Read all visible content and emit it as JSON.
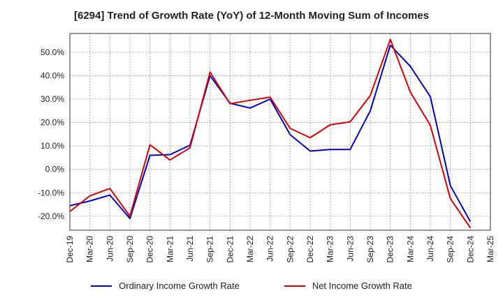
{
  "chart_data": {
    "type": "line",
    "title": "[6294]  Trend of Growth Rate (YoY) of 12-Month Moving Sum of Incomes",
    "xlabel": "",
    "ylabel": "",
    "ylim": [
      -26,
      58
    ],
    "y_ticks": [
      -20,
      -10,
      0,
      10,
      20,
      30,
      40,
      50
    ],
    "y_tick_labels": [
      "-20.0%",
      "-10.0%",
      "0.0%",
      "10.0%",
      "20.0%",
      "30.0%",
      "40.0%",
      "50.0%"
    ],
    "x_tick_labels": [
      "Dec-19",
      "Mar-20",
      "Jun-20",
      "Sep-20",
      "Dec-20",
      "Mar-21",
      "Jun-21",
      "Sep-21",
      "Dec-21",
      "Mar-22",
      "Jun-22",
      "Sep-22",
      "Dec-22",
      "Mar-23",
      "Jun-23",
      "Sep-23",
      "Dec-23",
      "Mar-24",
      "Jun-24",
      "Sep-24",
      "Dec-24",
      "Mar-25"
    ],
    "grid": true,
    "legend_position": "bottom",
    "series": [
      {
        "name": "Ordinary Income Growth Rate",
        "color": "#0000cc",
        "values": [
          -15.5,
          -13.5,
          -11,
          -21,
          6,
          6.3,
          10.3,
          40,
          28.2,
          26.2,
          30,
          14.8,
          7.8,
          8.5,
          8.5,
          25,
          53,
          44,
          31,
          -7,
          -22.3
        ]
      },
      {
        "name": "Net Income Growth Rate",
        "color": "#dd0000",
        "values": [
          -18,
          -11.3,
          -8.2,
          -20,
          10.5,
          4,
          9.2,
          41.5,
          28,
          29.5,
          30.8,
          17.5,
          13.5,
          19,
          20.3,
          31.5,
          55.5,
          33,
          18.8,
          -12.5,
          -25
        ]
      }
    ]
  }
}
